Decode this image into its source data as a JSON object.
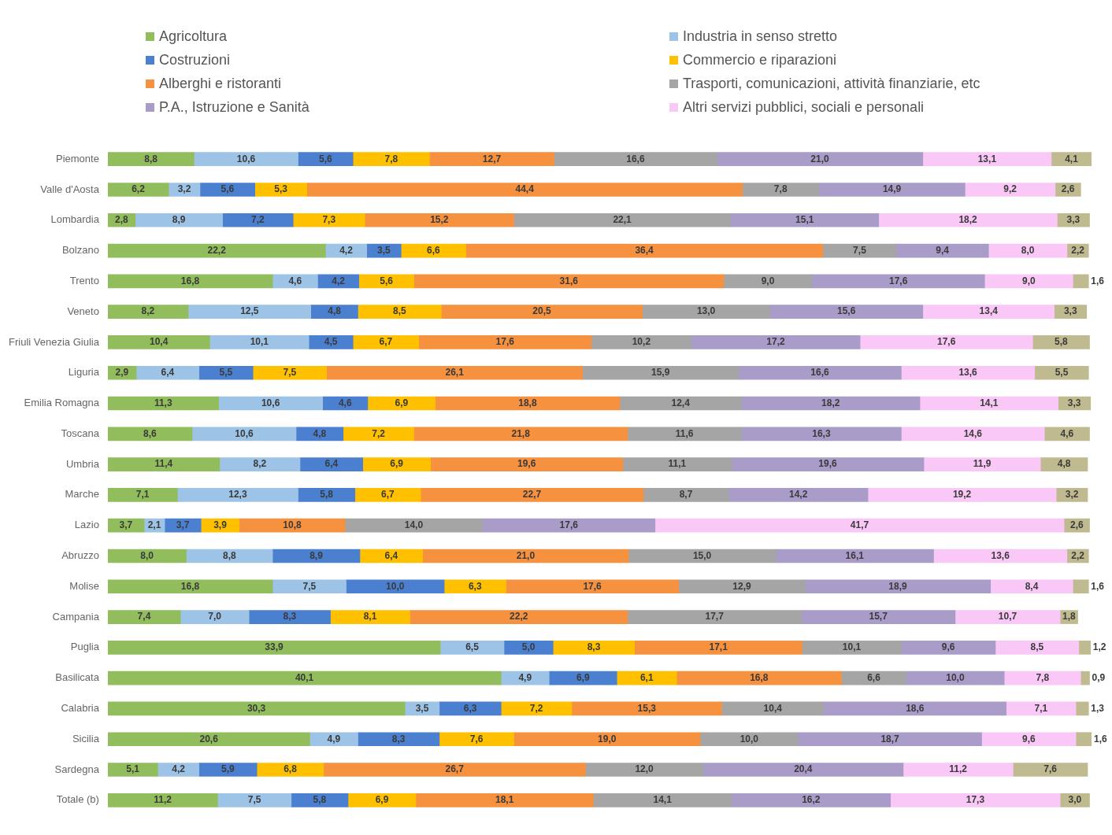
{
  "chart_data": {
    "type": "bar",
    "orientation": "horizontal",
    "stacked": true,
    "legend": "top",
    "categories": [
      "Piemonte",
      "Valle d'Aosta",
      "Lombardia",
      "Bolzano",
      "Trento",
      "Veneto",
      "Friuli Venezia Giulia",
      "Liguria",
      "Emilia Romagna",
      "Toscana",
      "Umbria",
      "Marche",
      "Lazio",
      "Abruzzo",
      "Molise",
      "Campania",
      "Puglia",
      "Basilicata",
      "Calabria",
      "Sicilia",
      "Sardegna",
      "Totale (b)"
    ],
    "series": [
      {
        "name": "Agricoltura",
        "color": "#92bd5c",
        "values": [
          8.8,
          6.2,
          2.8,
          22.2,
          16.8,
          8.2,
          10.4,
          2.9,
          11.3,
          8.6,
          11.4,
          7.1,
          3.7,
          8.0,
          16.8,
          7.4,
          33.9,
          40.1,
          30.3,
          20.6,
          5.1,
          11.2
        ],
        "value_labels": [
          "8,8",
          "6,2",
          "2,8",
          "22,2",
          "16,8",
          "8,2",
          "10,4",
          "2,9",
          "11,3",
          "8,6",
          "11,4",
          "7,1",
          "3,7",
          "8,0",
          "16,8",
          "7,4",
          "33,9",
          "40,1",
          "30,3",
          "20,6",
          "5,1",
          "11,2"
        ]
      },
      {
        "name": "Industria in senso stretto",
        "color": "#9dc3e6",
        "values": [
          10.6,
          3.2,
          8.9,
          4.2,
          4.6,
          12.5,
          10.1,
          6.4,
          10.6,
          10.6,
          8.2,
          12.3,
          2.1,
          8.8,
          7.5,
          7.0,
          6.5,
          4.9,
          3.5,
          4.9,
          4.2,
          7.5
        ],
        "value_labels": [
          "10,6",
          "3,2",
          "8,9",
          "4,2",
          "4,6",
          "12,5",
          "10,1",
          "6,4",
          "10,6",
          "10,6",
          "8,2",
          "12,3",
          "2,1",
          "8,8",
          "7,5",
          "7,0",
          "6,5",
          "4,9",
          "3,5",
          "4,9",
          "4,2",
          "7,5"
        ]
      },
      {
        "name": "Costruzioni",
        "color": "#4a80cf",
        "values": [
          5.6,
          5.6,
          7.2,
          3.5,
          4.2,
          4.8,
          4.5,
          5.5,
          4.6,
          4.8,
          6.4,
          5.8,
          3.7,
          8.9,
          10.0,
          8.3,
          5.0,
          6.9,
          6.3,
          8.3,
          5.9,
          5.8
        ],
        "value_labels": [
          "5,6",
          "5,6",
          "7,2",
          "3,5",
          "4,2",
          "4,8",
          "4,5",
          "5,5",
          "4,6",
          "4,8",
          "6,4",
          "5,8",
          "3,7",
          "8,9",
          "10,0",
          "8,3",
          "5,0",
          "6,9",
          "6,3",
          "8,3",
          "5,9",
          "5,8"
        ]
      },
      {
        "name": "Commercio e riparazioni",
        "color": "#ffc000",
        "values": [
          7.8,
          5.3,
          7.3,
          6.6,
          5.6,
          8.5,
          6.7,
          7.5,
          6.9,
          7.2,
          6.9,
          6.7,
          3.9,
          6.4,
          6.3,
          8.1,
          8.3,
          6.1,
          7.2,
          7.6,
          6.8,
          6.9
        ],
        "value_labels": [
          "7,8",
          "5,3",
          "7,3",
          "6,6",
          "5,6",
          "8,5",
          "6,7",
          "7,5",
          "6,9",
          "7,2",
          "6,9",
          "6,7",
          "3,9",
          "6,4",
          "6,3",
          "8,1",
          "8,3",
          "6,1",
          "7,2",
          "7,6",
          "6,8",
          "6,9"
        ]
      },
      {
        "name": "Alberghi e ristoranti",
        "color": "#f5913f",
        "values": [
          12.7,
          44.4,
          15.2,
          36.4,
          31.6,
          20.5,
          17.6,
          26.1,
          18.8,
          21.8,
          19.6,
          22.7,
          10.8,
          21.0,
          17.6,
          22.2,
          17.1,
          16.8,
          15.3,
          19.0,
          26.7,
          18.1
        ],
        "value_labels": [
          "12,7",
          "44,4",
          "15,2",
          "36,4",
          "31,6",
          "20,5",
          "17,6",
          "26,1",
          "18,8",
          "21,8",
          "19,6",
          "22,7",
          "10,8",
          "21,0",
          "17,6",
          "22,2",
          "17,1",
          "16,8",
          "15,3",
          "19,0",
          "26,7",
          "18,1"
        ]
      },
      {
        "name": "Trasporti, comunicazioni, attività finanziarie, etc",
        "color": "#a5a5a5",
        "values": [
          16.6,
          7.8,
          22.1,
          7.5,
          9.0,
          13.0,
          10.2,
          15.9,
          12.4,
          11.6,
          11.1,
          8.7,
          14.0,
          15.0,
          12.9,
          17.7,
          10.1,
          6.6,
          10.4,
          10.0,
          12.0,
          14.1
        ],
        "value_labels": [
          "16,6",
          "7,8",
          "22,1",
          "7,5",
          "9,0",
          "13,0",
          "10,2",
          "15,9",
          "12,4",
          "11,6",
          "11,1",
          "8,7",
          "14,0",
          "15,0",
          "12,9",
          "17,7",
          "10,1",
          "6,6",
          "10,4",
          "10,0",
          "12,0",
          "14,1"
        ]
      },
      {
        "name": "P.A., Istruzione e Sanità",
        "color": "#a99cc9",
        "values": [
          21.0,
          14.9,
          15.1,
          9.4,
          17.6,
          15.6,
          17.2,
          16.6,
          18.2,
          16.3,
          19.6,
          14.2,
          17.6,
          16.1,
          18.9,
          15.7,
          9.6,
          10.0,
          18.6,
          18.7,
          20.4,
          16.2
        ],
        "value_labels": [
          "21,0",
          "14,9",
          "15,1",
          "9,4",
          "17,6",
          "15,6",
          "17,2",
          "16,6",
          "18,2",
          "16,3",
          "19,6",
          "14,2",
          "17,6",
          "16,1",
          "18,9",
          "15,7",
          "9,6",
          "10,0",
          "18,6",
          "18,7",
          "20,4",
          "16,2"
        ]
      },
      {
        "name": "Altri servizi pubblici, sociali e personali",
        "color": "#f9c8f6",
        "values": [
          13.1,
          9.2,
          18.2,
          8.0,
          9.0,
          13.4,
          17.6,
          13.6,
          14.1,
          14.6,
          11.9,
          19.2,
          41.7,
          13.6,
          8.4,
          10.7,
          8.5,
          7.8,
          7.1,
          9.6,
          11.2,
          17.3
        ],
        "value_labels": [
          "13,1",
          "9,2",
          "18,2",
          "8,0",
          "9,0",
          "13,4",
          "17,6",
          "13,6",
          "14,1",
          "14,6",
          "11,9",
          "19,2",
          "41,7",
          "13,6",
          "8,4",
          "10,7",
          "8,5",
          "7,8",
          "7,1",
          "9,6",
          "11,2",
          "17,3"
        ]
      },
      {
        "color": "#bfba90",
        "values": [
          4.1,
          2.6,
          3.3,
          2.2,
          1.6,
          3.3,
          5.8,
          5.5,
          3.3,
          4.6,
          4.8,
          3.2,
          2.6,
          2.2,
          1.6,
          1.8,
          1.2,
          0.9,
          1.3,
          1.6,
          7.6,
          3.0
        ],
        "value_labels": [
          "4,1",
          "2,6",
          "3,3",
          "2,2",
          "1,6",
          "3,3",
          "5,8",
          "5,5",
          "3,3",
          "4,6",
          "4,8",
          "3,2",
          "2,6",
          "2,2",
          "1,6",
          "1,8",
          "1,2",
          "0,9",
          "1,3",
          "1,6",
          "7,6",
          "3,0"
        ]
      }
    ]
  }
}
